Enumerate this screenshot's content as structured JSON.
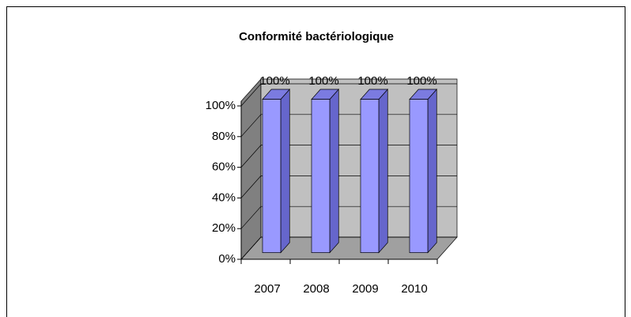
{
  "chart_data": {
    "type": "bar3d",
    "title": "Conformité bactériologique",
    "categories": [
      "2007",
      "2008",
      "2009",
      "2010"
    ],
    "values": [
      100,
      100,
      100,
      100
    ],
    "value_labels": [
      "100%",
      "100%",
      "100%",
      "100%"
    ],
    "color": "#9999ff",
    "ylim": [
      0,
      100
    ],
    "yticks": [
      {
        "value": 0,
        "label": "0%"
      },
      {
        "value": 20,
        "label": "20%"
      },
      {
        "value": 40,
        "label": "40%"
      },
      {
        "value": 60,
        "label": "60%"
      },
      {
        "value": 80,
        "label": "80%"
      },
      {
        "value": 100,
        "label": "100%"
      }
    ],
    "grid": true
  }
}
